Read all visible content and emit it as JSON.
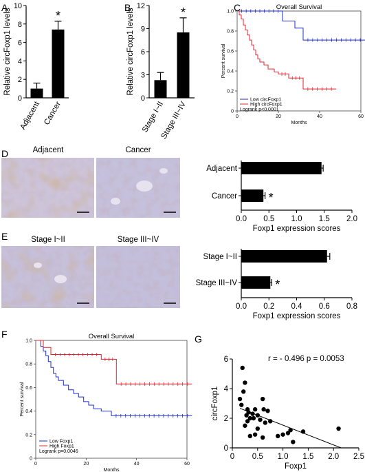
{
  "panels": {
    "A": "A",
    "B": "B",
    "C": "C",
    "D": "D",
    "E": "E",
    "F": "F",
    "G": "G"
  },
  "colors": {
    "low": "#1a2bd1",
    "high": "#e0242c",
    "bar": "#000000",
    "tissue_bg": "#c9c2d8",
    "stain": "#9a6f3e"
  },
  "images": {
    "d_left_title": "Adjacent",
    "d_right_title": "Cancer",
    "e_left_title": "Stage I~II",
    "e_right_title": "Stage III~IV"
  },
  "chart_data": [
    {
      "id": "A",
      "type": "bar",
      "categories": [
        "Adjacent",
        "Cancer"
      ],
      "values": [
        1.0,
        7.4
      ],
      "errors": [
        0.6,
        0.9
      ],
      "ylabel": "Relative circFoxp1 levels",
      "ylim": [
        0,
        10
      ],
      "yticks": [
        0,
        2,
        4,
        6,
        8,
        10
      ],
      "significance": [
        "",
        "*"
      ]
    },
    {
      "id": "B",
      "type": "bar",
      "categories": [
        "Stage I~II",
        "Stage III~IV"
      ],
      "values": [
        2.3,
        8.5
      ],
      "errors": [
        1.0,
        1.9
      ],
      "ylabel": "Relative circFoxp1 levels",
      "ylim": [
        0,
        12
      ],
      "yticks": [
        0,
        3,
        6,
        9,
        12
      ],
      "significance": [
        "",
        "*"
      ]
    },
    {
      "id": "C",
      "type": "line",
      "title": "Overall Survival",
      "xlabel": "Months",
      "ylabel": "Percent survival",
      "xlim": [
        0,
        60
      ],
      "xticks": [
        0,
        20,
        40,
        60
      ],
      "ylim": [
        0,
        1
      ],
      "yticks": [
        0,
        0.2,
        0.4,
        0.6,
        0.8,
        1.0
      ],
      "ytick_labels": [
        "0",
        "0.2",
        "0.4",
        "0.6",
        "0.8",
        "1.0"
      ],
      "legend": [
        "Low circFoxp1",
        "High circFoxp1"
      ],
      "annotation": "Logrank p<0.0001",
      "series": [
        {
          "name": "Low circFoxp1",
          "color": "#1a2bd1",
          "x": [
            0,
            22,
            22,
            24,
            24,
            28,
            28,
            32,
            32,
            62
          ],
          "y": [
            1.0,
            1.0,
            0.9,
            0.9,
            0.9,
            0.9,
            0.83,
            0.83,
            0.71,
            0.71
          ]
        },
        {
          "name": "High circFoxp1",
          "color": "#e0242c",
          "x": [
            0,
            1,
            1,
            2,
            2,
            3,
            3,
            4,
            4,
            5,
            5,
            6,
            6,
            7,
            7,
            8,
            8,
            9,
            9,
            10,
            10,
            11,
            11,
            13,
            13,
            15,
            15,
            18,
            18,
            20,
            20,
            25,
            25,
            32,
            32,
            48
          ],
          "y": [
            1.0,
            1.0,
            0.96,
            0.96,
            0.92,
            0.92,
            0.86,
            0.86,
            0.81,
            0.81,
            0.76,
            0.76,
            0.71,
            0.71,
            0.66,
            0.66,
            0.61,
            0.61,
            0.56,
            0.56,
            0.52,
            0.52,
            0.49,
            0.49,
            0.46,
            0.46,
            0.42,
            0.42,
            0.39,
            0.39,
            0.37,
            0.37,
            0.33,
            0.33,
            0.22,
            0.22
          ]
        }
      ]
    },
    {
      "id": "D",
      "type": "bar",
      "orientation": "horizontal",
      "categories": [
        "Adjacent",
        "Cancer"
      ],
      "values": [
        1.45,
        0.4
      ],
      "errors": [
        0.03,
        0.03
      ],
      "xlabel": "Foxp1 expression scores",
      "xlim": [
        0,
        2.0
      ],
      "xticks": [
        0,
        0.5,
        1.0,
        1.5,
        2.0
      ],
      "xtick_labels": [
        "0.0",
        "0.5",
        "1.0",
        "1.5",
        "2.0"
      ],
      "significance": [
        "",
        "*"
      ]
    },
    {
      "id": "E",
      "type": "bar",
      "orientation": "horizontal",
      "categories": [
        "Stage I~II",
        "Stage III~IV"
      ],
      "values": [
        0.62,
        0.21
      ],
      "errors": [
        0.02,
        0.01
      ],
      "xlabel": "Foxp1 expression scores",
      "xlim": [
        0,
        0.8
      ],
      "xticks": [
        0,
        0.2,
        0.4,
        0.6,
        0.8
      ],
      "xtick_labels": [
        "0.0",
        "0.2",
        "0.4",
        "0.6",
        "0.8"
      ],
      "significance": [
        "",
        "*"
      ]
    },
    {
      "id": "F",
      "type": "line",
      "title": "Overall Survival",
      "xlabel": "Months",
      "ylabel": "Percent survival",
      "xlim": [
        0,
        60
      ],
      "xticks": [
        0,
        20,
        40,
        60
      ],
      "ylim": [
        0,
        1
      ],
      "yticks": [
        0,
        0.2,
        0.4,
        0.6,
        0.8,
        1.0
      ],
      "ytick_labels": [
        "0",
        "0.2",
        "0.4",
        "0.6",
        "0.8",
        "1.0"
      ],
      "legend": [
        "Low Foxp1",
        "High Foxp1"
      ],
      "annotation": "Logrank p=0.0046",
      "series": [
        {
          "name": "Low Foxp1",
          "color": "#1a2bd1",
          "x": [
            0,
            2,
            2,
            3,
            3,
            4,
            4,
            5,
            5,
            6,
            6,
            7,
            7,
            8,
            8,
            9,
            9,
            11,
            11,
            13,
            13,
            15,
            15,
            17,
            17,
            19,
            19,
            21,
            21,
            23,
            23,
            26,
            26,
            30,
            30,
            62
          ],
          "y": [
            1.0,
            1.0,
            0.95,
            0.95,
            0.91,
            0.91,
            0.87,
            0.87,
            0.82,
            0.82,
            0.77,
            0.77,
            0.72,
            0.72,
            0.69,
            0.69,
            0.66,
            0.66,
            0.62,
            0.62,
            0.58,
            0.58,
            0.55,
            0.55,
            0.52,
            0.52,
            0.48,
            0.48,
            0.45,
            0.45,
            0.42,
            0.42,
            0.4,
            0.4,
            0.36,
            0.36
          ]
        },
        {
          "name": "High Foxp1",
          "color": "#e0242c",
          "x": [
            0,
            3,
            3,
            6,
            6,
            26,
            26,
            32,
            32,
            62
          ],
          "y": [
            1.0,
            1.0,
            0.94,
            0.94,
            0.88,
            0.88,
            0.84,
            0.84,
            0.63,
            0.63
          ]
        }
      ]
    },
    {
      "id": "G",
      "type": "scatter",
      "xlabel": "Foxp1",
      "ylabel": "circFoxp1",
      "xlim": [
        0,
        2.5
      ],
      "xticks": [
        0,
        0.5,
        1.0,
        1.5,
        2.0,
        2.5
      ],
      "xtick_labels": [
        "0",
        "0.5",
        "1.0",
        "1.5",
        "2.0",
        "2.5"
      ],
      "ylim": [
        0,
        6
      ],
      "yticks": [
        0,
        2,
        4,
        6
      ],
      "annotation": "r = - 0.496   p = 0.0053",
      "fit": {
        "x": [
          0.15,
          2.15
        ],
        "y": [
          2.67,
          0
        ]
      },
      "x": [
        0.2,
        0.25,
        0.22,
        0.15,
        0.18,
        0.3,
        0.32,
        0.28,
        0.35,
        0.4,
        0.45,
        0.5,
        0.55,
        0.6,
        0.62,
        0.65,
        0.7,
        0.75,
        0.5,
        0.35,
        0.25,
        0.9,
        1.0,
        1.1,
        1.15,
        1.2,
        1.4,
        2.1,
        0.6,
        0.45,
        0.3,
        0.42
      ],
      "y": [
        5.4,
        4.4,
        3.8,
        3.3,
        2.9,
        2.6,
        2.4,
        2.2,
        2.0,
        2.3,
        2.6,
        2.2,
        1.9,
        3.3,
        2.6,
        1.7,
        2.5,
        1.8,
        1.3,
        0.8,
        1.5,
        0.8,
        0.9,
        1.0,
        1.2,
        0.4,
        1.1,
        1.3,
        0.7,
        0.9,
        1.8,
        2.0
      ]
    }
  ]
}
